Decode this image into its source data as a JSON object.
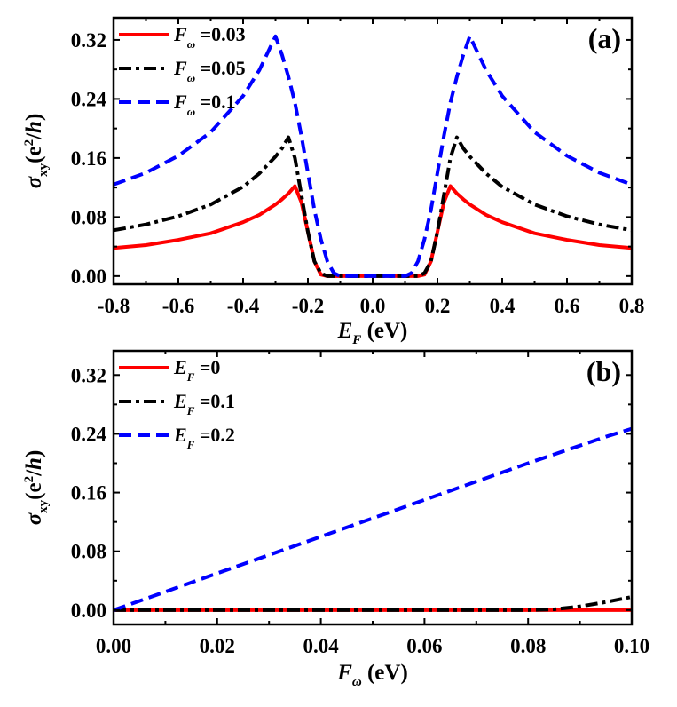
{
  "chart_data": [
    {
      "type": "line",
      "panel_label": "(a)",
      "xlabel": {
        "main": "E",
        "sub": "F",
        "unit": " (eV)"
      },
      "ylabel": {
        "main": "σ",
        "sub": "xy",
        "unit_pre": "(e",
        "sup": "2",
        "unit_mid": "/",
        "unit_italic": "h",
        "unit_post": ")"
      },
      "xlim": [
        -0.8,
        0.8
      ],
      "ylim": [
        -0.011,
        0.35
      ],
      "xticks": [
        -0.8,
        -0.6,
        -0.4,
        -0.2,
        0.0,
        0.2,
        0.4,
        0.6,
        0.8
      ],
      "xtick_labels": [
        "-0.8",
        "-0.6",
        "-0.4",
        "-0.2",
        "0.0",
        "0.2",
        "0.4",
        "0.6",
        "0.8"
      ],
      "yticks": [
        0.0,
        0.08,
        0.16,
        0.24,
        0.32
      ],
      "ytick_labels": [
        "0.00",
        "0.08",
        "0.16",
        "0.24",
        "0.32"
      ],
      "grid": false,
      "legend_position": "top-left",
      "x": [
        -0.8,
        -0.7,
        -0.6,
        -0.5,
        -0.4,
        -0.35,
        -0.3,
        -0.28,
        -0.26,
        -0.24,
        -0.22,
        -0.2,
        -0.18,
        -0.16,
        -0.14,
        -0.12,
        -0.1,
        -0.08,
        0,
        0.08,
        0.1,
        0.12,
        0.14,
        0.16,
        0.18,
        0.2,
        0.22,
        0.24,
        0.26,
        0.28,
        0.3,
        0.35,
        0.4,
        0.5,
        0.6,
        0.7,
        0.8
      ],
      "series": [
        {
          "name": {
            "main": "F",
            "sub": "ω",
            "value": " =0.03"
          },
          "color": "#ff0000",
          "style": "solid",
          "values": [
            0.038,
            0.042,
            0.049,
            0.058,
            0.073,
            0.083,
            0.097,
            0.104,
            0.112,
            0.122,
            0.1,
            0.06,
            0.02,
            0.002,
            0,
            0,
            0,
            0,
            0,
            0,
            0,
            0,
            0,
            0.002,
            0.02,
            0.06,
            0.1,
            0.122,
            0.112,
            0.104,
            0.097,
            0.083,
            0.073,
            0.058,
            0.049,
            0.042,
            0.038
          ]
        },
        {
          "name": {
            "main": "F",
            "sub": "ω",
            "value": " =0.05"
          },
          "color": "#000000",
          "style": "dashdot",
          "values": [
            0.062,
            0.07,
            0.081,
            0.097,
            0.121,
            0.139,
            0.162,
            0.173,
            0.188,
            0.16,
            0.11,
            0.06,
            0.02,
            0.004,
            0,
            0,
            0,
            0,
            0,
            0,
            0,
            0,
            0,
            0.004,
            0.02,
            0.06,
            0.11,
            0.16,
            0.188,
            0.173,
            0.162,
            0.139,
            0.121,
            0.097,
            0.081,
            0.07,
            0.062
          ]
        },
        {
          "name": {
            "main": "F",
            "sub": "ω",
            "value": " =0.1"
          },
          "color": "#0000ff",
          "style": "dashed",
          "values": [
            0.124,
            0.14,
            0.163,
            0.195,
            0.244,
            0.279,
            0.325,
            0.3,
            0.27,
            0.235,
            0.19,
            0.14,
            0.09,
            0.05,
            0.02,
            0.004,
            0,
            0,
            0,
            0,
            0,
            0.004,
            0.02,
            0.05,
            0.09,
            0.14,
            0.19,
            0.235,
            0.27,
            0.3,
            0.325,
            0.279,
            0.244,
            0.195,
            0.163,
            0.14,
            0.124
          ]
        }
      ]
    },
    {
      "type": "line",
      "panel_label": "(b)",
      "xlabel": {
        "main": "F",
        "sub": "ω",
        "unit": " (eV)"
      },
      "ylabel": {
        "main": "σ",
        "sub": "xy",
        "unit_pre": "(e",
        "sup": "2",
        "unit_mid": "/",
        "unit_italic": "h",
        "unit_post": ")"
      },
      "xlim": [
        0,
        0.1
      ],
      "ylim": [
        -0.0195,
        0.353
      ],
      "xticks": [
        0,
        0.02,
        0.04,
        0.06,
        0.08,
        0.1
      ],
      "xtick_labels": [
        "0.00",
        "0.02",
        "0.04",
        "0.06",
        "0.08",
        "0.10"
      ],
      "yticks": [
        0.0,
        0.08,
        0.16,
        0.24,
        0.32
      ],
      "ytick_labels": [
        "0.00",
        "0.08",
        "0.16",
        "0.24",
        "0.32"
      ],
      "grid": false,
      "legend_position": "top-left",
      "x": [
        0,
        0.02,
        0.04,
        0.06,
        0.08,
        0.085,
        0.09,
        0.095,
        0.1
      ],
      "series": [
        {
          "name": {
            "main": "E",
            "sub": "F",
            "value": " =0"
          },
          "color": "#ff0000",
          "style": "solid",
          "values": [
            0,
            0,
            0,
            0,
            0,
            0,
            0,
            0,
            0
          ]
        },
        {
          "name": {
            "main": "E",
            "sub": "F",
            "value": " =0.1"
          },
          "color": "#000000",
          "style": "dashdot",
          "values": [
            0,
            0,
            0,
            0,
            0,
            0.001,
            0.005,
            0.011,
            0.018
          ]
        },
        {
          "name": {
            "main": "E",
            "sub": "F",
            "value": " =0.2"
          },
          "color": "#0000ff",
          "style": "dashed",
          "values": [
            0,
            0.05,
            0.1,
            0.15,
            0.2,
            0.212,
            0.224,
            0.236,
            0.247
          ]
        }
      ]
    }
  ]
}
